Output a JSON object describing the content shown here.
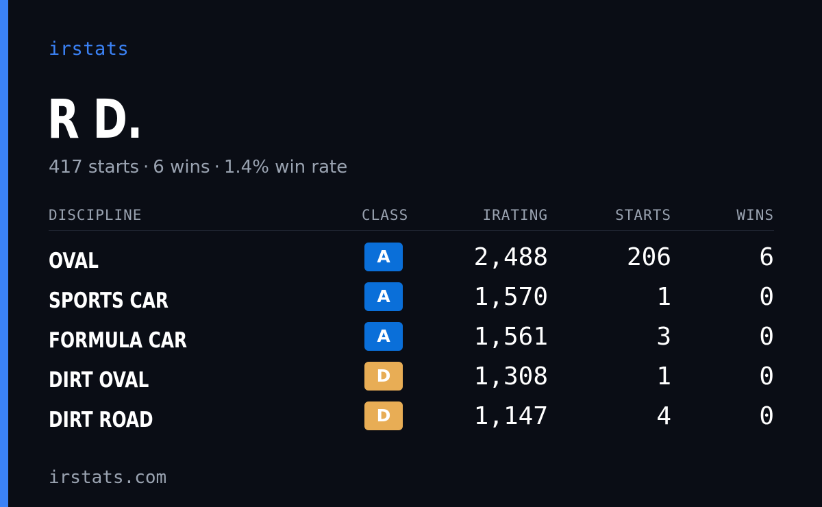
{
  "brand": "irstats",
  "driver": {
    "name": "R D.",
    "starts_text": "417 starts",
    "wins_text": "6 wins",
    "win_rate_text": "1.4% win rate",
    "separator": "·"
  },
  "table": {
    "headers": {
      "discipline": "DISCIPLINE",
      "class": "CLASS",
      "irating": "IRATING",
      "starts": "STARTS",
      "wins": "WINS"
    },
    "rows": [
      {
        "discipline": "OVAL",
        "class": "A",
        "irating": "2,488",
        "starts": "206",
        "wins": "6"
      },
      {
        "discipline": "SPORTS CAR",
        "class": "A",
        "irating": "1,570",
        "starts": "1",
        "wins": "0"
      },
      {
        "discipline": "FORMULA CAR",
        "class": "A",
        "irating": "1,561",
        "starts": "3",
        "wins": "0"
      },
      {
        "discipline": "DIRT OVAL",
        "class": "D",
        "irating": "1,308",
        "starts": "1",
        "wins": "0"
      },
      {
        "discipline": "DIRT ROAD",
        "class": "D",
        "irating": "1,147",
        "starts": "4",
        "wins": "0"
      }
    ]
  },
  "class_colors": {
    "A": "#0a6fd9",
    "D": "#e8ad55"
  },
  "accent_color": "#3b82f6",
  "footer": "irstats.com"
}
